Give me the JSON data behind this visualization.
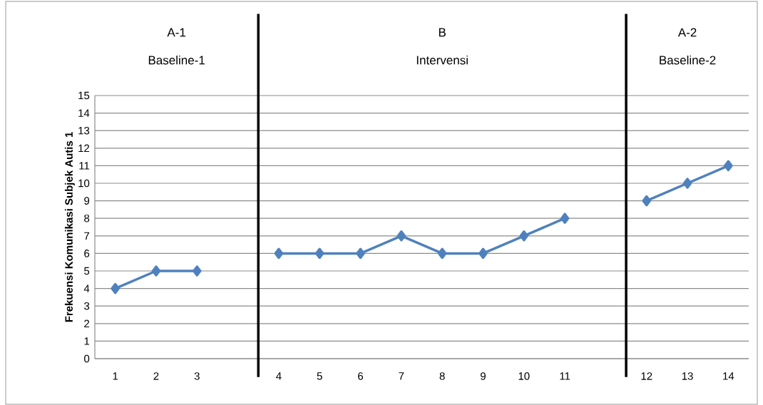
{
  "chart_data": {
    "type": "line",
    "ylabel": "Frekuensi Komunikasi  Subjek Autis 1",
    "categories": [
      "1",
      "2",
      "3",
      null,
      "4",
      "5",
      "6",
      "7",
      "8",
      "9",
      "10",
      "11",
      null,
      "12",
      "13",
      "14"
    ],
    "values": [
      4,
      5,
      5,
      null,
      6,
      6,
      6,
      7,
      6,
      6,
      7,
      8,
      null,
      9,
      10,
      11
    ],
    "color": "#4f81bd",
    "marker": "diamond",
    "ylim": [
      0,
      15
    ],
    "yticks": [
      0,
      1,
      2,
      3,
      4,
      5,
      6,
      7,
      8,
      9,
      10,
      11,
      12,
      13,
      14,
      15
    ],
    "grid": "y",
    "annotations": [
      "A-1",
      "Baseline-1",
      "B",
      "Intervensi",
      "A-2",
      "Baseline-2"
    ]
  }
}
